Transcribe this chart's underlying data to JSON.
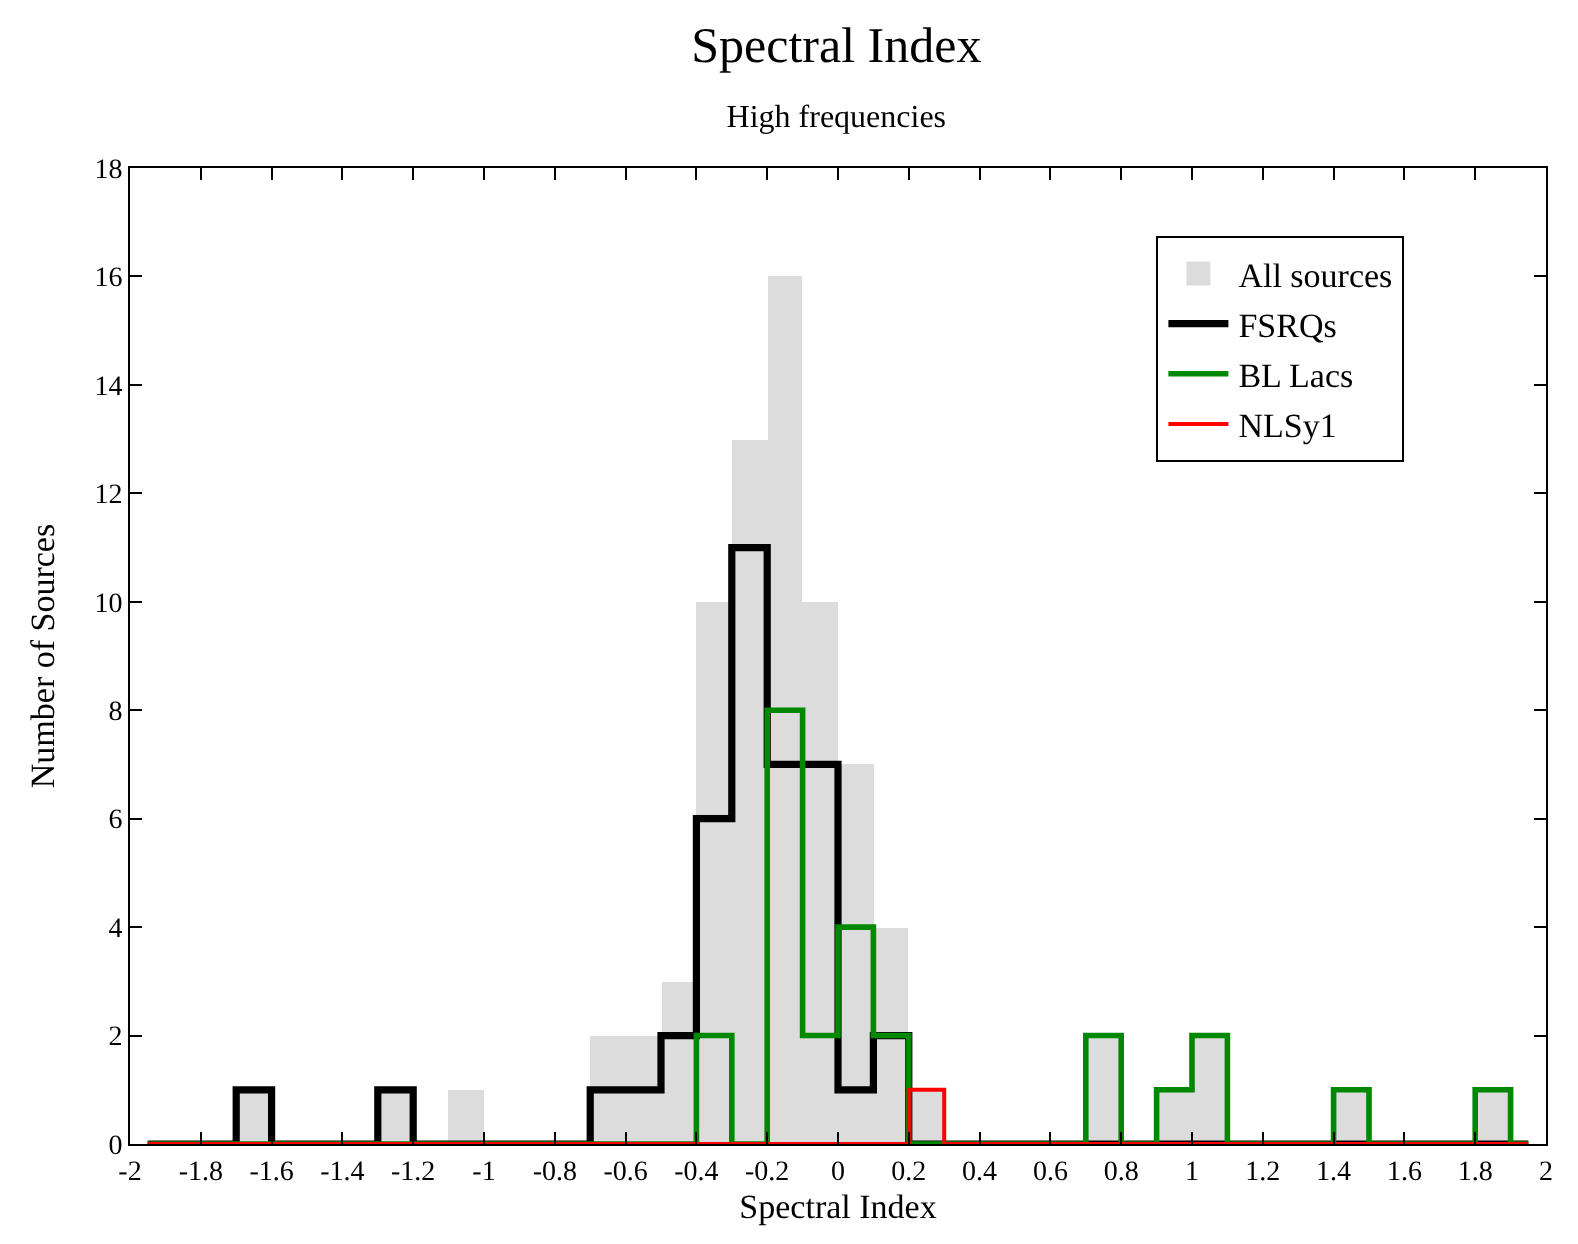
{
  "chart_data": {
    "type": "histogram",
    "title": "Spectral Index",
    "subtitle": "High frequencies",
    "xlabel": "Spectral Index",
    "ylabel": "Number of Sources",
    "bins": [
      -2,
      -1.9,
      -1.8,
      -1.7,
      -1.6,
      -1.5,
      -1.4,
      -1.3,
      -1.2,
      -1.1,
      -1,
      -0.9,
      -0.8,
      -0.7,
      -0.6,
      -0.5,
      -0.4,
      -0.3,
      -0.2,
      -0.1,
      0,
      0.1,
      0.2,
      0.3,
      0.4,
      0.5,
      0.6,
      0.7,
      0.8,
      0.9,
      1,
      1.1,
      1.2,
      1.3,
      1.4,
      1.5,
      1.6,
      1.7,
      1.8,
      1.9,
      2
    ],
    "series": [
      {
        "name": "All sources",
        "color": "#dcdcdc",
        "values": [
          0,
          0,
          0,
          1,
          0,
          0,
          0,
          1,
          0,
          1,
          0,
          0,
          0,
          2,
          2,
          3,
          10,
          13,
          16,
          10,
          7,
          4,
          1,
          0,
          0,
          0,
          0,
          2,
          0,
          1,
          2,
          0,
          0,
          0,
          1,
          0,
          0,
          0,
          1,
          0
        ]
      },
      {
        "name": "FSRQs",
        "type": "step",
        "color": "#000000",
        "x": [
          -1.95,
          -1.85,
          -1.75,
          -1.65,
          -1.55,
          -1.45,
          -1.35,
          -1.25,
          -1.15,
          -1.05,
          -0.95,
          -0.85,
          -0.75,
          -0.65,
          -0.55,
          -0.45,
          -0.35,
          -0.25,
          -0.15,
          -0.05,
          0.05,
          0.15,
          0.25,
          0.35,
          0.45,
          0.55,
          0.65,
          0.75,
          0.85,
          0.95,
          1.05,
          1.15,
          1.25,
          1.35,
          1.45,
          1.55,
          1.65,
          1.75,
          1.85,
          1.95
        ],
        "values": [
          0,
          0,
          0,
          1,
          0,
          0,
          0,
          1,
          0,
          0,
          0,
          0,
          0,
          1,
          1,
          2,
          6,
          11,
          7,
          7,
          1,
          2,
          0,
          0,
          0,
          0,
          0,
          0,
          0,
          0,
          0,
          0,
          0,
          0,
          0,
          0,
          0,
          0,
          0,
          0
        ]
      },
      {
        "name": "BL Lacs",
        "type": "step",
        "color": "#008800",
        "x": [
          -1.95,
          -1.85,
          -1.75,
          -1.65,
          -1.55,
          -1.45,
          -1.35,
          -1.25,
          -1.15,
          -1.05,
          -0.95,
          -0.85,
          -0.75,
          -0.65,
          -0.55,
          -0.45,
          -0.35,
          -0.25,
          -0.15,
          -0.05,
          0.05,
          0.15,
          0.25,
          0.35,
          0.45,
          0.55,
          0.65,
          0.75,
          0.85,
          0.95,
          1.05,
          1.15,
          1.25,
          1.35,
          1.45,
          1.55,
          1.65,
          1.75,
          1.85,
          1.95
        ],
        "values": [
          0,
          0,
          0,
          0,
          0,
          0,
          0,
          0,
          0,
          0,
          0,
          0,
          0,
          0,
          0,
          0,
          2,
          0,
          8,
          2,
          4,
          2,
          0,
          0,
          0,
          0,
          0,
          2,
          0,
          1,
          2,
          0,
          0,
          0,
          1,
          0,
          0,
          0,
          1,
          0
        ]
      },
      {
        "name": "NLSy1",
        "type": "step",
        "color": "#ff0000",
        "x": [
          -1.95,
          -1.85,
          -1.75,
          -1.65,
          -1.55,
          -1.45,
          -1.35,
          -1.25,
          -1.15,
          -1.05,
          -0.95,
          -0.85,
          -0.75,
          -0.65,
          -0.55,
          -0.45,
          -0.35,
          -0.25,
          -0.15,
          -0.05,
          0.05,
          0.15,
          0.25,
          0.35,
          0.45,
          0.55,
          0.65,
          0.75,
          0.85,
          0.95,
          1.05,
          1.15,
          1.25,
          1.35,
          1.45,
          1.55,
          1.65,
          1.75,
          1.85,
          1.95
        ],
        "values": [
          0,
          0,
          0,
          0,
          0,
          0,
          0,
          0,
          0,
          0,
          0,
          0,
          0,
          0,
          0,
          0,
          0,
          0,
          0,
          0,
          0,
          0,
          1,
          0,
          0,
          0,
          0,
          0,
          0,
          0,
          0,
          0,
          0,
          0,
          0,
          0,
          0,
          0,
          0,
          0
        ]
      }
    ],
    "xlim": [
      -2,
      2
    ],
    "xticks": [
      -2,
      -1.8,
      -1.6,
      -1.4,
      -1.2,
      -1,
      -0.8,
      -0.6,
      -0.4,
      -0.2,
      0,
      0.2,
      0.4,
      0.6,
      0.8,
      1,
      1.2,
      1.4,
      1.6,
      1.8,
      2
    ],
    "ylim": [
      0,
      18
    ],
    "yticks": [
      0,
      2,
      4,
      6,
      8,
      10,
      12,
      14,
      16,
      18
    ],
    "legend": "top right"
  }
}
